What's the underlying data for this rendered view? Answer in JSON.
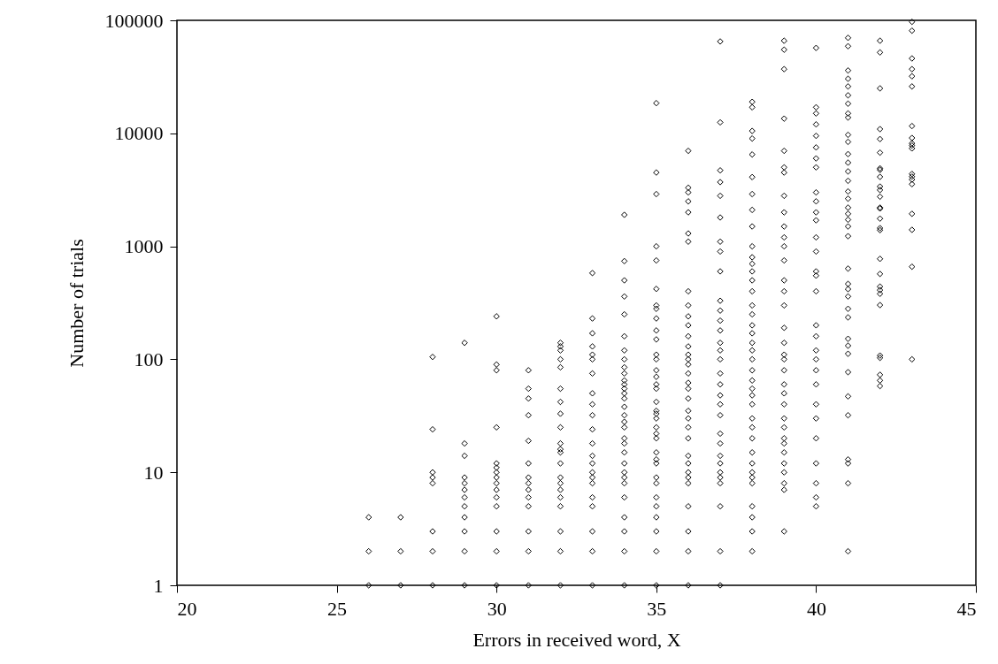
{
  "chart_data": {
    "type": "scatter",
    "xlabel": "Errors in received word, X",
    "ylabel": "Number of trials",
    "xlim": [
      20,
      45
    ],
    "xticks": [
      20,
      25,
      30,
      35,
      40,
      45
    ],
    "ylim": [
      1,
      100000
    ],
    "yticks": [
      1,
      10,
      100,
      1000,
      10000,
      100000
    ],
    "log": "y",
    "grid": false,
    "legend": false,
    "marker": "diamond",
    "series": [
      {
        "color": "#000000",
        "x": [
          26,
          26,
          26
        ],
        "values": [
          1,
          2,
          4
        ]
      },
      {
        "color": "#000000",
        "x": [
          27,
          27,
          27
        ],
        "values": [
          1,
          2,
          4
        ]
      },
      {
        "color": "#000000",
        "x": [
          28,
          28,
          28,
          28,
          28,
          28,
          28,
          28
        ],
        "values": [
          1,
          2,
          3,
          8,
          9,
          10,
          24,
          105
        ]
      },
      {
        "color": "#000000",
        "x": [
          29,
          29,
          29,
          29,
          29,
          29,
          29,
          29,
          29,
          29,
          29,
          29
        ],
        "values": [
          1,
          2,
          3,
          4,
          5,
          6,
          7,
          8,
          9,
          14,
          18,
          140
        ]
      },
      {
        "color": "#000000",
        "x": [
          30,
          30,
          30,
          30,
          30,
          30,
          30,
          30,
          30,
          30,
          30,
          30,
          30,
          30,
          30
        ],
        "values": [
          1,
          2,
          3,
          5,
          6,
          7,
          8,
          9,
          10,
          11,
          12,
          25,
          80,
          90,
          240
        ]
      },
      {
        "color": "#000000",
        "x": [
          31,
          31,
          31,
          31,
          31,
          31,
          31,
          31,
          31,
          31,
          31,
          31,
          31,
          31
        ],
        "values": [
          1,
          2,
          3,
          5,
          6,
          7,
          8,
          9,
          12,
          19,
          32,
          45,
          55,
          80
        ]
      },
      {
        "color": "#000000",
        "x": [
          32,
          32,
          32,
          32,
          32,
          32,
          32,
          32,
          32,
          32,
          32,
          32,
          32,
          32,
          32,
          32,
          32,
          32,
          32,
          32,
          32
        ],
        "values": [
          1,
          2,
          3,
          5,
          6,
          7,
          8,
          9,
          12,
          15,
          16,
          18,
          25,
          33,
          42,
          55,
          85,
          100,
          120,
          130,
          140
        ]
      },
      {
        "color": "#000000",
        "x": [
          33,
          33,
          33,
          33,
          33,
          33,
          33,
          33,
          33,
          33,
          33,
          33,
          33,
          33,
          33,
          33,
          33,
          33,
          33,
          33,
          33,
          33
        ],
        "values": [
          1,
          2,
          3,
          5,
          6,
          8,
          9,
          10,
          12,
          14,
          18,
          24,
          32,
          40,
          50,
          75,
          100,
          110,
          130,
          170,
          230,
          580
        ]
      },
      {
        "color": "#000000",
        "x": [
          34,
          34,
          34,
          34,
          34,
          34,
          34,
          34,
          34,
          34,
          34,
          34,
          34,
          34,
          34,
          34,
          34,
          34,
          34,
          34,
          34,
          34,
          34,
          34,
          34,
          34,
          34,
          34,
          34,
          34,
          34
        ],
        "values": [
          1,
          2,
          3,
          4,
          6,
          8,
          9,
          10,
          12,
          15,
          18,
          20,
          25,
          28,
          32,
          38,
          45,
          50,
          55,
          60,
          65,
          75,
          85,
          100,
          120,
          160,
          250,
          360,
          500,
          740,
          1900
        ]
      },
      {
        "color": "#000000",
        "x": [
          35,
          35,
          35,
          35,
          35,
          35,
          35,
          35,
          35,
          35,
          35,
          35,
          35,
          35,
          35,
          35,
          35,
          35,
          35,
          35,
          35,
          35,
          35,
          35,
          35,
          35,
          35,
          35,
          35,
          35,
          35,
          35,
          35,
          35,
          35
        ],
        "values": [
          1,
          2,
          3,
          4,
          5,
          6,
          8,
          9,
          12,
          13,
          15,
          20,
          22,
          25,
          30,
          33,
          35,
          42,
          55,
          60,
          70,
          80,
          100,
          110,
          150,
          180,
          230,
          280,
          300,
          420,
          750,
          1000,
          2900,
          4500,
          18500
        ]
      },
      {
        "color": "#000000",
        "x": [
          36,
          36,
          36,
          36,
          36,
          36,
          36,
          36,
          36,
          36,
          36,
          36,
          36,
          36,
          36,
          36,
          36,
          36,
          36,
          36,
          36,
          36,
          36,
          36,
          36,
          36,
          36,
          36,
          36,
          36,
          36,
          36,
          36
        ],
        "values": [
          1,
          2,
          3,
          5,
          8,
          9,
          10,
          12,
          14,
          20,
          25,
          30,
          35,
          45,
          55,
          62,
          75,
          90,
          100,
          110,
          130,
          160,
          200,
          240,
          300,
          400,
          1100,
          1300,
          2000,
          2500,
          3000,
          3300,
          7000
        ]
      },
      {
        "color": "#000000",
        "x": [
          37,
          37,
          37,
          37,
          37,
          37,
          37,
          37,
          37,
          37,
          37,
          37,
          37,
          37,
          37,
          37,
          37,
          37,
          37,
          37,
          37,
          37,
          37,
          37,
          37,
          37,
          37,
          37,
          37,
          37,
          37
        ],
        "values": [
          1,
          2,
          5,
          8,
          9,
          10,
          12,
          14,
          18,
          22,
          32,
          40,
          48,
          60,
          75,
          100,
          120,
          140,
          180,
          220,
          270,
          330,
          600,
          900,
          1100,
          1800,
          2800,
          3700,
          4700,
          12500,
          65000
        ]
      },
      {
        "color": "#000000",
        "x": [
          38,
          38,
          38,
          38,
          38,
          38,
          38,
          38,
          38,
          38,
          38,
          38,
          38,
          38,
          38,
          38,
          38,
          38,
          38,
          38,
          38,
          38,
          38,
          38,
          38,
          38,
          38,
          38,
          38,
          38,
          38,
          38,
          38,
          38,
          38,
          38,
          38,
          38,
          38
        ],
        "values": [
          2,
          3,
          4,
          5,
          8,
          9,
          10,
          12,
          15,
          20,
          25,
          30,
          40,
          48,
          55,
          65,
          80,
          100,
          120,
          140,
          170,
          200,
          250,
          300,
          400,
          500,
          600,
          700,
          800,
          1000,
          1500,
          2100,
          2900,
          4100,
          6500,
          9000,
          10500,
          17000,
          19000
        ]
      },
      {
        "color": "#000000",
        "x": [
          39,
          39,
          39,
          39,
          39,
          39,
          39,
          39,
          39,
          39,
          39,
          39,
          39,
          39,
          39,
          39,
          39,
          39,
          39,
          39,
          39,
          39,
          39,
          39,
          39,
          39,
          39,
          39,
          39,
          39,
          39,
          39,
          39,
          39
        ],
        "values": [
          3,
          7,
          8,
          10,
          12,
          15,
          18,
          20,
          25,
          30,
          40,
          50,
          60,
          80,
          100,
          110,
          140,
          190,
          300,
          400,
          500,
          750,
          1000,
          1200,
          1500,
          2000,
          2800,
          4500,
          5000,
          7000,
          13500,
          37000,
          55000,
          66000
        ]
      },
      {
        "color": "#000000",
        "x": [
          40,
          40,
          40,
          40,
          40,
          40,
          40,
          40,
          40,
          40,
          40,
          40,
          40,
          40,
          40,
          40,
          40,
          40,
          40,
          40,
          40,
          40,
          40,
          40,
          40,
          40,
          40,
          40,
          40,
          40
        ],
        "values": [
          5,
          6,
          8,
          12,
          20,
          30,
          40,
          60,
          80,
          100,
          120,
          160,
          200,
          400,
          550,
          600,
          900,
          1200,
          1700,
          2000,
          2500,
          3000,
          5000,
          6000,
          7500,
          9500,
          12000,
          15000,
          17000,
          57000
        ]
      },
      {
        "color": "#000000",
        "x": [
          41,
          41,
          41,
          41,
          41,
          41,
          41,
          41,
          41,
          41,
          41,
          41,
          41,
          41,
          41,
          41,
          41,
          41,
          41,
          41,
          41,
          41,
          41,
          41,
          41,
          41,
          41,
          41,
          41,
          41,
          41,
          41,
          41,
          41,
          41,
          41,
          41,
          41
        ],
        "values": [
          2,
          8,
          12,
          13,
          32,
          47,
          77,
          112,
          132,
          152,
          235,
          280,
          360,
          418,
          465,
          635,
          1230,
          1500,
          1720,
          1940,
          2200,
          2640,
          3060,
          3800,
          4600,
          5500,
          6550,
          8400,
          9700,
          13800,
          15000,
          18300,
          21700,
          26000,
          30400,
          36000,
          59000,
          70000
        ]
      },
      {
        "color": "#000000",
        "x": [
          42,
          42,
          42,
          42,
          42,
          42,
          42,
          42,
          42,
          42,
          42,
          42,
          42,
          42,
          42,
          42,
          42,
          42,
          42,
          42,
          42,
          42,
          42,
          42,
          42,
          42,
          42,
          42
        ],
        "values": [
          58,
          65,
          73,
          103,
          108,
          302,
          380,
          410,
          440,
          570,
          775,
          1390,
          1450,
          1760,
          2160,
          2200,
          2750,
          3150,
          3380,
          4120,
          4750,
          4900,
          6750,
          8900,
          10900,
          25000,
          52000,
          66000
        ]
      },
      {
        "color": "#000000",
        "x": [
          43,
          43,
          43,
          43,
          43,
          43,
          43,
          43,
          43,
          43,
          43,
          43,
          43,
          43,
          43,
          43,
          43,
          43,
          43
        ],
        "values": [
          100,
          660,
          1400,
          1940,
          3550,
          3900,
          4140,
          4370,
          7350,
          7800,
          8150,
          9100,
          11600,
          26000,
          32000,
          37000,
          46000,
          81000,
          97000
        ]
      }
    ]
  }
}
